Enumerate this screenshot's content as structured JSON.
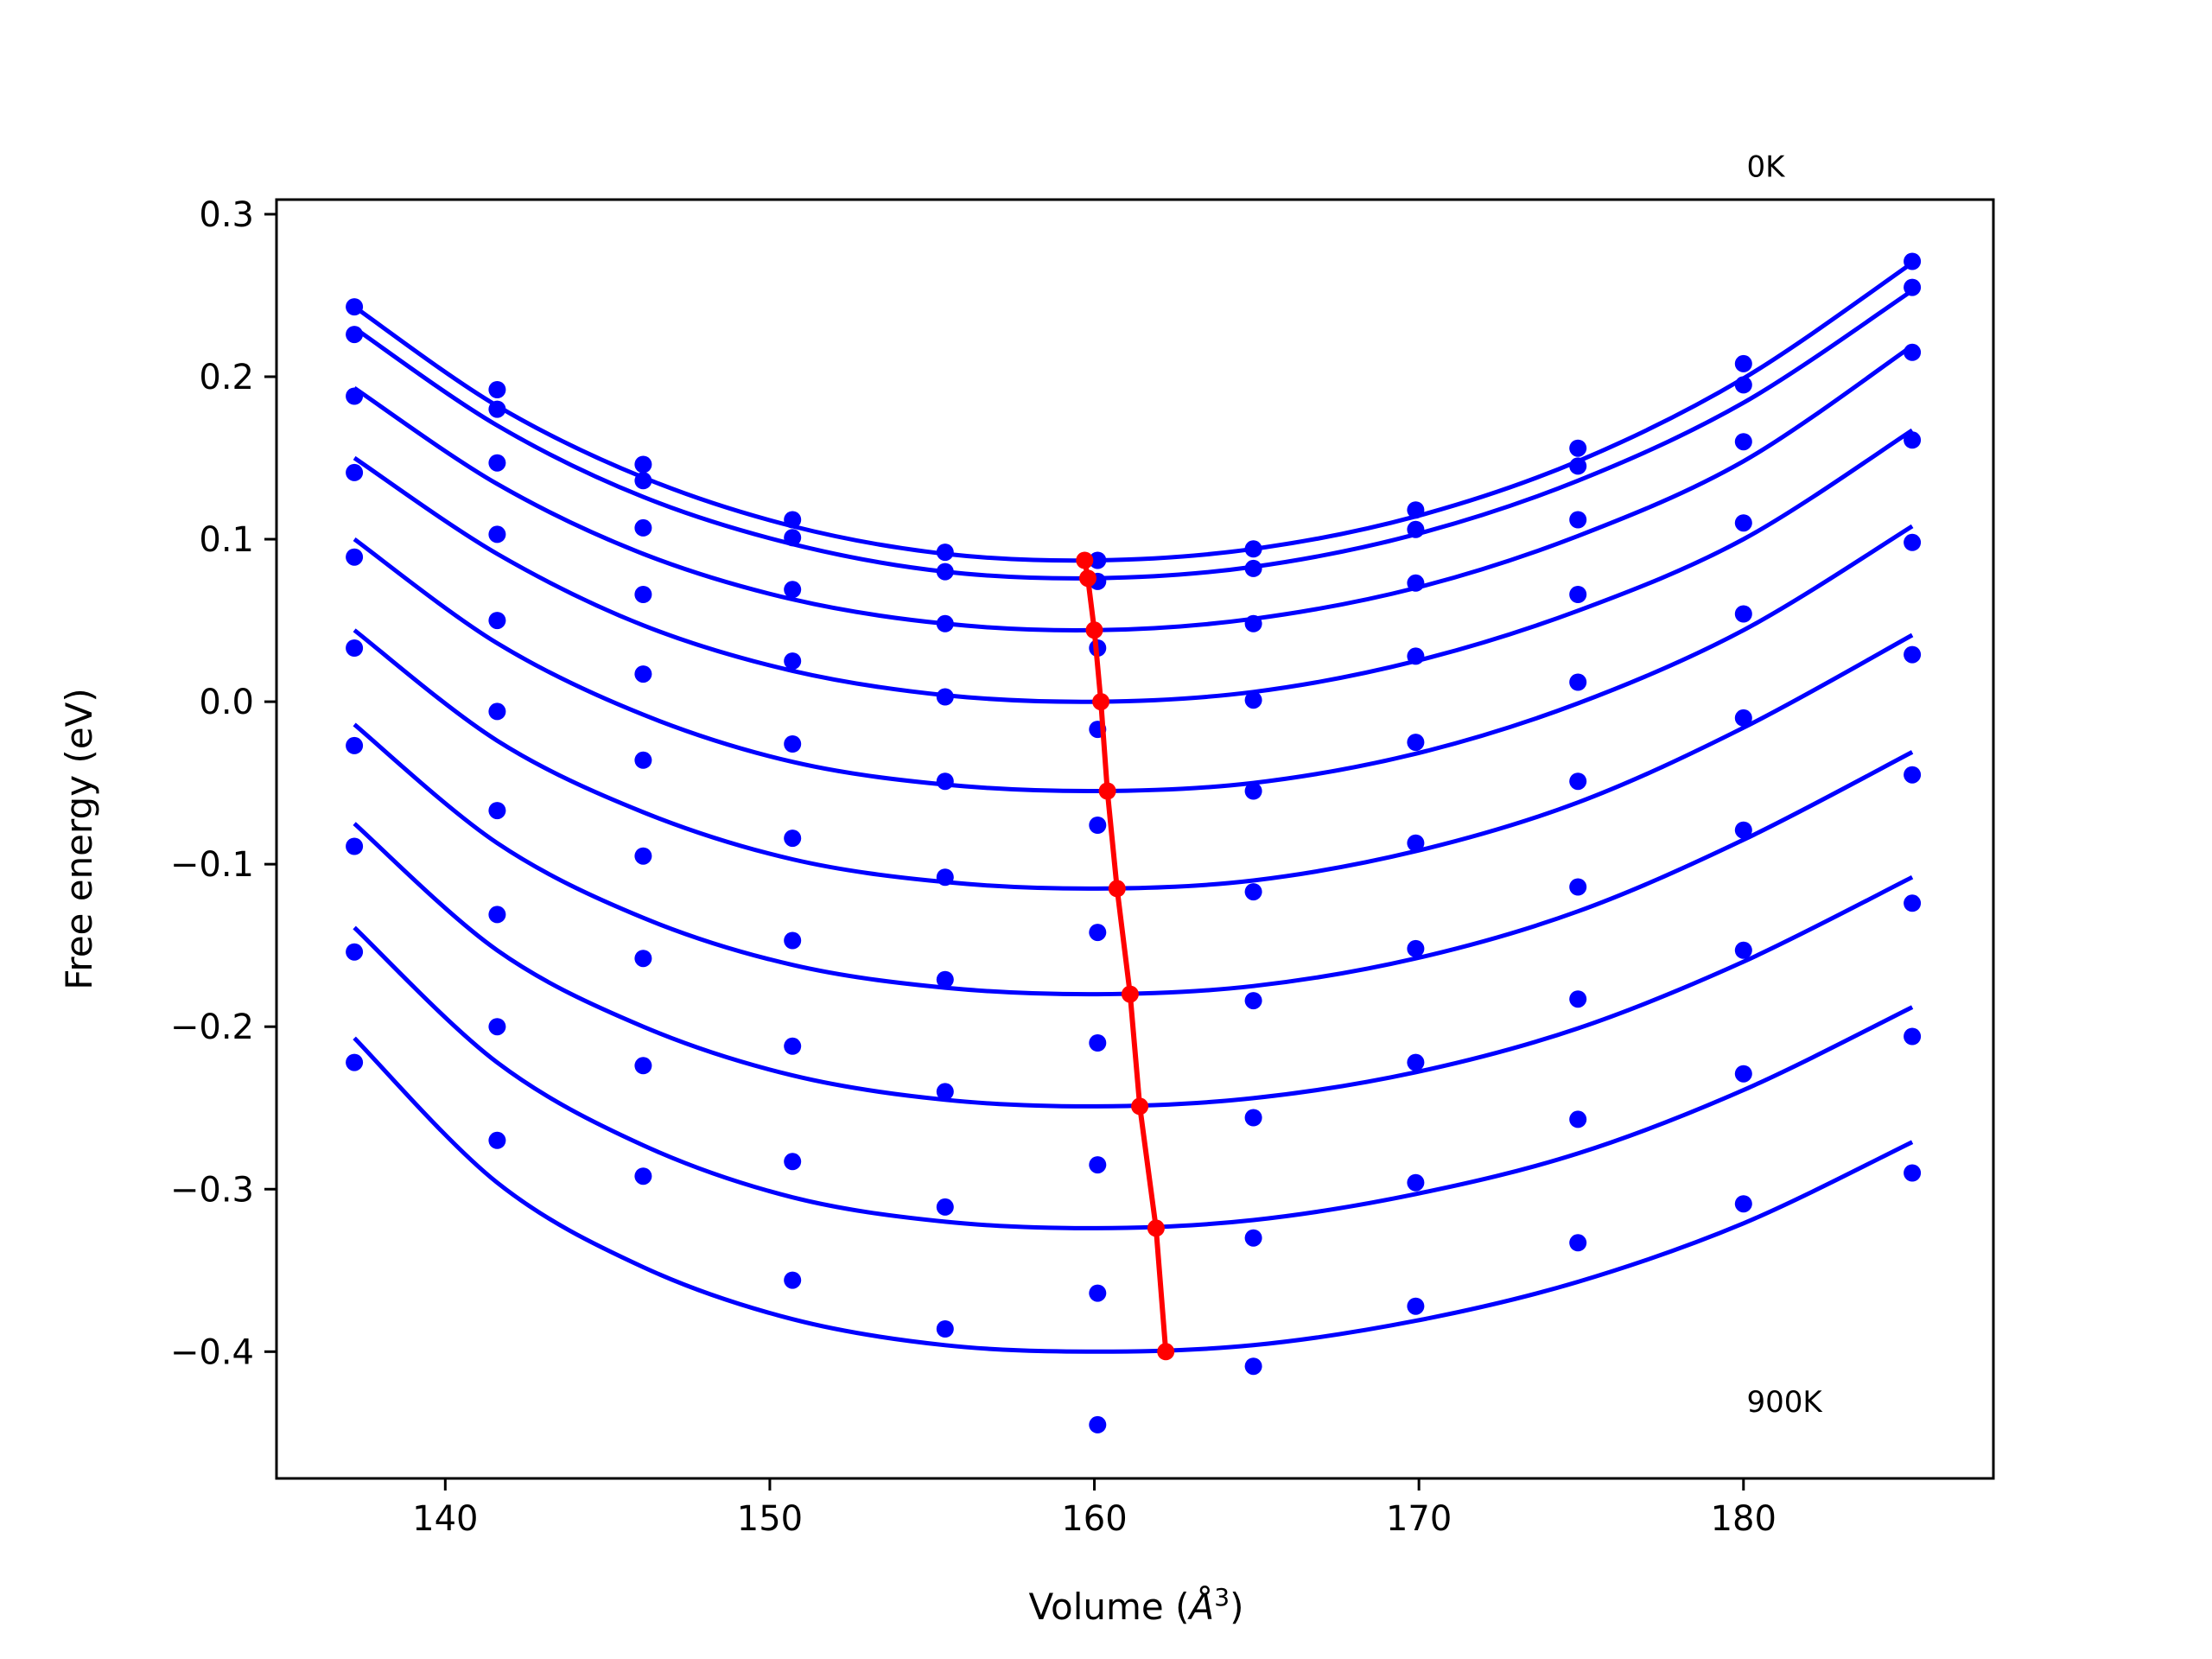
{
  "chart_data": {
    "type": "scatter",
    "xlabel": "Volume",
    "xlabel_unit": "Å",
    "xlabel_unit_exp": "3",
    "ylabel": "Free energy (eV)",
    "xlim": [
      134.8,
      187.7
    ],
    "ylim": [
      -0.478,
      0.309
    ],
    "xticks": [
      140,
      150,
      160,
      170,
      180
    ],
    "xtick_labels": [
      "140",
      "150",
      "160",
      "170",
      "180"
    ],
    "yticks": [
      0.3,
      0.2,
      0.1,
      0.0,
      -0.1,
      -0.2,
      -0.3,
      -0.4
    ],
    "ytick_labels": [
      "0.3",
      "0.2",
      "0.1",
      "0.0",
      "−0.1",
      "−0.2",
      "−0.3",
      "−0.4"
    ],
    "grid": false,
    "annotations": [
      {
        "text": "0K",
        "x": 180.1,
        "y": 0.323
      },
      {
        "text": "900K",
        "x": 180.1,
        "y": -0.437
      }
    ],
    "volumes": [
      137.2,
      141.6,
      146.1,
      150.7,
      155.4,
      160.1,
      164.9,
      169.9,
      174.9,
      180.0,
      185.2
    ],
    "series": [
      {
        "values": [
          0.243,
          0.192,
          0.146,
          0.112,
          0.092,
          0.087,
          0.094,
          0.118,
          0.156,
          0.208,
          0.271
        ],
        "fit_values": [
          0.243,
          0.182,
          0.138,
          0.108,
          0.091,
          0.087,
          0.094,
          0.114,
          0.148,
          0.199,
          0.27
        ],
        "v0": 159.7,
        "e0": 0.087
      },
      {
        "values": [
          0.226,
          0.18,
          0.136,
          0.101,
          0.08,
          0.074,
          0.082,
          0.106,
          0.145,
          0.195,
          0.255
        ],
        "fit_values": [
          0.23,
          0.17,
          0.126,
          0.097,
          0.08,
          0.076,
          0.083,
          0.103,
          0.136,
          0.184,
          0.253
        ],
        "v0": 159.8,
        "e0": 0.076
      },
      {
        "values": [
          0.188,
          0.147,
          0.107,
          0.069,
          0.048,
          0.033,
          0.048,
          0.073,
          0.112,
          0.16,
          0.215
        ],
        "fit_values": [
          0.193,
          0.134,
          0.091,
          0.063,
          0.048,
          0.044,
          0.051,
          0.07,
          0.102,
          0.148,
          0.219
        ],
        "v0": 160.0,
        "e0": 0.044
      },
      {
        "values": [
          0.141,
          0.103,
          0.066,
          0.025,
          0.003,
          -0.017,
          0.001,
          0.028,
          0.066,
          0.11,
          0.161
        ],
        "fit_values": [
          0.15,
          0.091,
          0.047,
          0.019,
          0.004,
          0.0,
          0.006,
          0.025,
          0.056,
          0.1,
          0.167
        ],
        "v0": 160.2,
        "e0": 0.0
      },
      {
        "values": [
          0.089,
          0.05,
          0.017,
          -0.026,
          -0.049,
          -0.076,
          -0.055,
          -0.025,
          0.012,
          0.054,
          0.098
        ],
        "fit_values": [
          0.1,
          0.036,
          -0.008,
          -0.037,
          -0.051,
          -0.055,
          -0.05,
          -0.032,
          -0.001,
          0.044,
          0.108
        ],
        "v0": 160.4,
        "e0": -0.055
      },
      {
        "values": [
          0.033,
          -0.006,
          -0.036,
          -0.084,
          -0.108,
          -0.142,
          -0.117,
          -0.087,
          -0.049,
          -0.01,
          0.029
        ],
        "fit_values": [
          0.044,
          -0.024,
          -0.068,
          -0.097,
          -0.111,
          -0.115,
          -0.11,
          -0.092,
          -0.062,
          -0.016,
          0.041
        ],
        "v0": 160.7,
        "e0": -0.115
      },
      {
        "values": [
          -0.027,
          -0.067,
          -0.095,
          -0.147,
          -0.171,
          -0.21,
          -0.184,
          -0.152,
          -0.114,
          -0.079,
          -0.045
        ],
        "fit_values": [
          -0.014,
          -0.087,
          -0.133,
          -0.162,
          -0.176,
          -0.18,
          -0.175,
          -0.158,
          -0.129,
          -0.085,
          -0.031
        ],
        "v0": 161.1,
        "e0": -0.18
      },
      {
        "values": [
          -0.089,
          -0.131,
          -0.158,
          -0.212,
          -0.24,
          -0.285,
          -0.256,
          -0.222,
          -0.183,
          -0.153,
          -0.124
        ],
        "fit_values": [
          -0.075,
          -0.153,
          -0.2,
          -0.23,
          -0.245,
          -0.249,
          -0.244,
          -0.228,
          -0.201,
          -0.16,
          -0.108
        ],
        "v0": 161.4,
        "e0": -0.249
      },
      {
        "values": [
          -0.154,
          -0.2,
          -0.224,
          -0.283,
          -0.311,
          -0.364,
          -0.33,
          -0.296,
          -0.257,
          -0.229,
          -0.206
        ],
        "fit_values": [
          -0.139,
          -0.222,
          -0.273,
          -0.305,
          -0.32,
          -0.324,
          -0.319,
          -0.303,
          -0.278,
          -0.239,
          -0.188
        ],
        "v0": 161.9,
        "e0": -0.324
      },
      {
        "values": [
          -0.222,
          -0.27,
          -0.292,
          -0.356,
          -0.386,
          -0.445,
          -0.409,
          -0.372,
          -0.333,
          -0.309,
          -0.29
        ],
        "fit_values": [
          -0.207,
          -0.296,
          -0.348,
          -0.38,
          -0.396,
          -0.4,
          -0.396,
          -0.381,
          -0.357,
          -0.321,
          -0.271
        ],
        "v0": 162.2,
        "e0": -0.4
      }
    ],
    "colors": {
      "points": "#0000ff",
      "fits": "#0000ff",
      "minima": "#ff0000"
    }
  }
}
